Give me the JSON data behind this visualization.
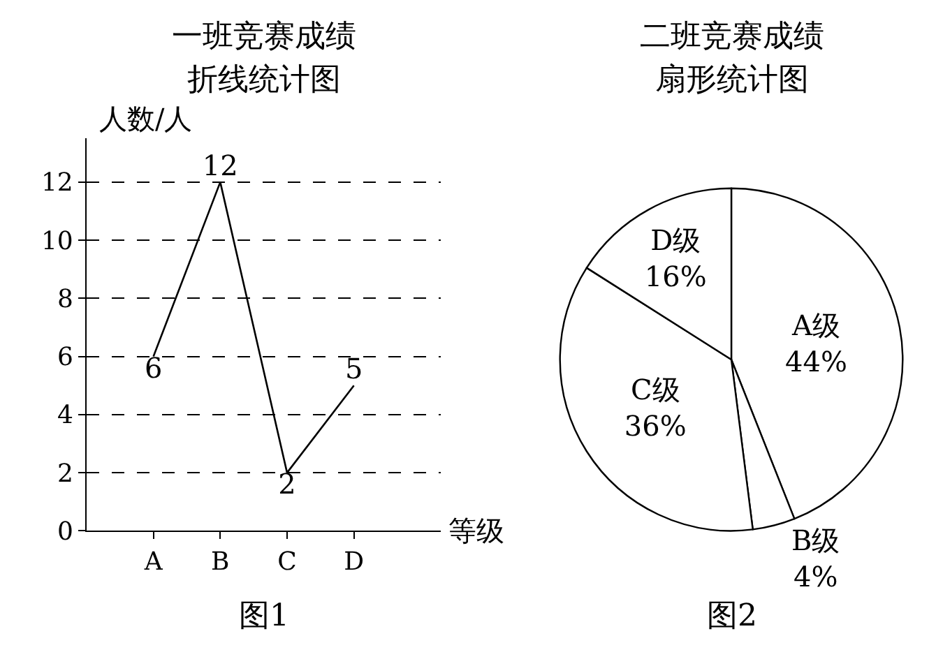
{
  "chart_data": [
    {
      "type": "line",
      "title": "一班竞赛成绩",
      "subtitle": "折线统计图",
      "xlabel": "等级",
      "ylabel": "人数/人",
      "categories": [
        "A",
        "B",
        "C",
        "D"
      ],
      "values": [
        6,
        12,
        2,
        5
      ],
      "color": "#000000",
      "ylim": [
        0,
        13.5
      ],
      "yticks": [
        0,
        2,
        4,
        6,
        8,
        10,
        12
      ],
      "grid": "y",
      "data_labels": true,
      "marker": "none",
      "line_style": "solid",
      "annotations": [
        "图1"
      ]
    },
    {
      "type": "pie",
      "title": "二班竞赛成绩",
      "subtitle": "扇形统计图",
      "categories": [
        "A级",
        "B级",
        "C级",
        "D级"
      ],
      "values": [
        44,
        4,
        36,
        16
      ],
      "colors": [
        "#ffffff",
        "#ffffff",
        "#ffffff",
        "#ffffff"
      ],
      "value_labels": [
        "44%",
        "4%",
        "36%",
        "16%"
      ],
      "annotations": [
        "图2"
      ]
    }
  ]
}
